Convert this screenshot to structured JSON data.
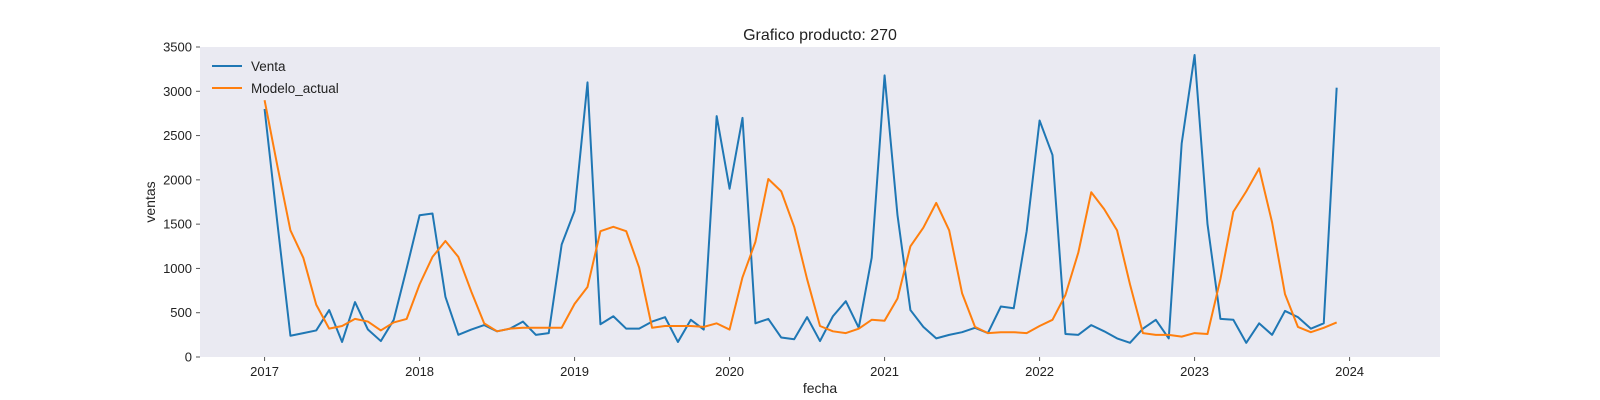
{
  "chart_data": {
    "type": "line",
    "title": "Grafico producto: 270",
    "xlabel": "fecha",
    "ylabel": "ventas",
    "ylim": [
      0,
      3500
    ],
    "xlim": [
      "2016-08",
      "2024-08"
    ],
    "yticks": [
      0,
      500,
      1000,
      1500,
      2000,
      2500,
      3000,
      3500
    ],
    "xticks": [
      "2017",
      "2018",
      "2019",
      "2020",
      "2021",
      "2022",
      "2023",
      "2024"
    ],
    "grid": false,
    "legend_position": "top-left",
    "background": "#eaeaf2",
    "x": [
      "2017-01",
      "2017-02",
      "2017-03",
      "2017-04",
      "2017-05",
      "2017-06",
      "2017-07",
      "2017-08",
      "2017-09",
      "2017-10",
      "2017-11",
      "2017-12",
      "2018-01",
      "2018-02",
      "2018-03",
      "2018-04",
      "2018-05",
      "2018-06",
      "2018-07",
      "2018-08",
      "2018-09",
      "2018-10",
      "2018-11",
      "2018-12",
      "2019-01",
      "2019-02",
      "2019-03",
      "2019-04",
      "2019-05",
      "2019-06",
      "2019-07",
      "2019-08",
      "2019-09",
      "2019-10",
      "2019-11",
      "2019-12",
      "2020-01",
      "2020-02",
      "2020-03",
      "2020-04",
      "2020-05",
      "2020-06",
      "2020-07",
      "2020-08",
      "2020-09",
      "2020-10",
      "2020-11",
      "2020-12",
      "2021-01",
      "2021-02",
      "2021-03",
      "2021-04",
      "2021-05",
      "2021-06",
      "2021-07",
      "2021-08",
      "2021-09",
      "2021-10",
      "2021-11",
      "2021-12",
      "2022-01",
      "2022-02",
      "2022-03",
      "2022-04",
      "2022-05",
      "2022-06",
      "2022-07",
      "2022-08",
      "2022-09",
      "2022-10",
      "2022-11",
      "2022-12",
      "2023-01",
      "2023-02",
      "2023-03",
      "2023-04",
      "2023-05",
      "2023-06",
      "2023-07",
      "2023-08",
      "2023-09",
      "2023-10",
      "2023-11",
      "2023-12"
    ],
    "series": [
      {
        "name": "Venta",
        "color": "#1f77b4",
        "values": [
          2800,
          1500,
          240,
          270,
          300,
          530,
          170,
          620,
          310,
          180,
          420,
          1000,
          1600,
          1620,
          680,
          250,
          310,
          360,
          290,
          320,
          400,
          250,
          270,
          1270,
          1650,
          3100,
          370,
          460,
          320,
          320,
          400,
          450,
          170,
          420,
          310,
          2720,
          1900,
          2700,
          380,
          430,
          220,
          200,
          450,
          180,
          460,
          630,
          330,
          1120,
          3180,
          1600,
          530,
          340,
          210,
          250,
          280,
          330,
          270,
          570,
          550,
          1420,
          2670,
          2280,
          260,
          250,
          360,
          290,
          210,
          160,
          320,
          420,
          210,
          2410,
          3410,
          1500,
          430,
          420,
          160,
          380,
          250,
          520,
          450,
          320,
          380,
          3040
        ]
      },
      {
        "name": "Modelo_actual",
        "color": "#ff7f0e",
        "values": [
          2900,
          2150,
          1430,
          1120,
          590,
          320,
          350,
          430,
          400,
          300,
          390,
          430,
          820,
          1130,
          1310,
          1130,
          740,
          380,
          290,
          320,
          330,
          330,
          330,
          330,
          600,
          790,
          1420,
          1470,
          1420,
          1010,
          330,
          350,
          350,
          350,
          340,
          380,
          310,
          900,
          1300,
          2010,
          1870,
          1470,
          880,
          350,
          290,
          270,
          320,
          420,
          410,
          660,
          1250,
          1460,
          1740,
          1430,
          720,
          340,
          270,
          280,
          280,
          270,
          350,
          420,
          700,
          1180,
          1860,
          1670,
          1430,
          820,
          270,
          250,
          250,
          230,
          270,
          260,
          880,
          1640,
          1870,
          2130,
          1520,
          710,
          340,
          280,
          330,
          390
        ]
      }
    ]
  }
}
